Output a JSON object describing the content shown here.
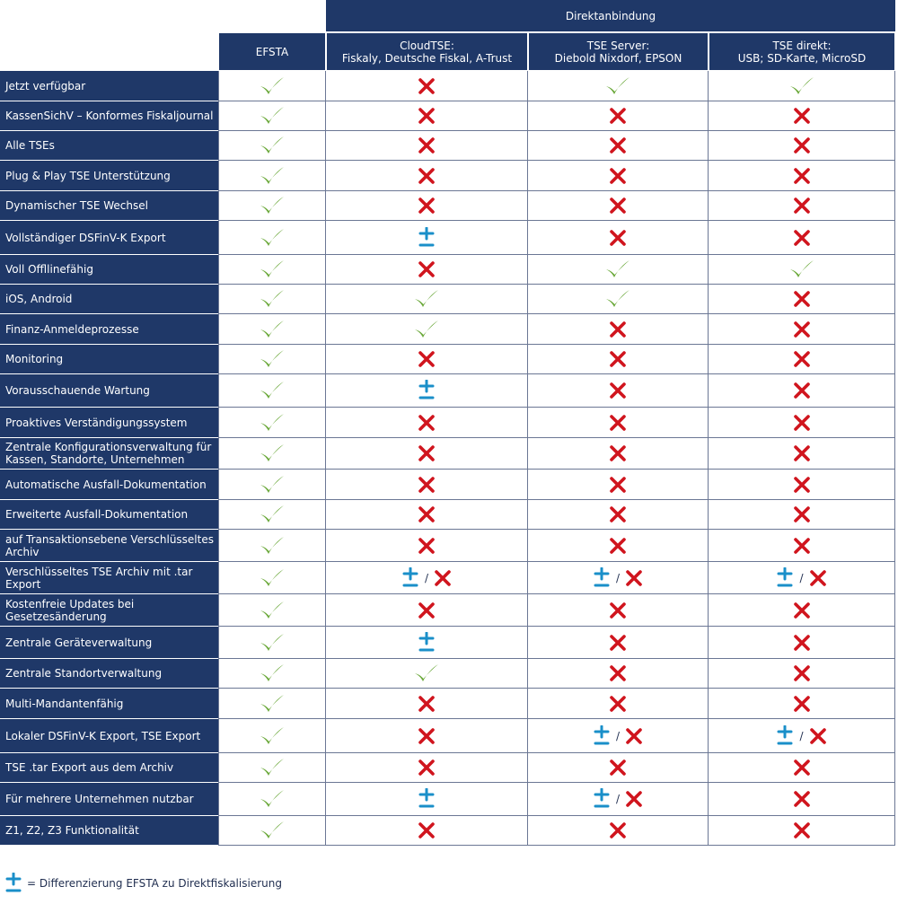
{
  "header": {
    "super_label": "Direktanbindung",
    "columns": [
      {
        "line1": "EFSTA",
        "line2": ""
      },
      {
        "line1": "CloudTSE:",
        "line2": "Fiskaly, Deutsche Fiskal, A-Trust"
      },
      {
        "line1": "TSE Server:",
        "line2": "Diebold Nixdorf, EPSON"
      },
      {
        "line1": "TSE direkt:",
        "line2": "USB; SD-Karte, MicroSD"
      }
    ]
  },
  "colors": {
    "navy": "#1f3868",
    "check": "#6aa839",
    "cross": "#d0151e",
    "plusminus": "#1a8fc9"
  },
  "rows": [
    {
      "label": "Jetzt verfügbar",
      "values": [
        "check",
        "cross",
        "check",
        "check"
      ]
    },
    {
      "label": "KassenSichV – Konformes Fiskaljournal",
      "values": [
        "check",
        "cross",
        "cross",
        "cross"
      ]
    },
    {
      "label": "Alle TSEs",
      "values": [
        "check",
        "cross",
        "cross",
        "cross"
      ]
    },
    {
      "label": "Plug & Play TSE Unterstützung",
      "values": [
        "check",
        "cross",
        "cross",
        "cross"
      ]
    },
    {
      "label": "Dynamischer TSE Wechsel",
      "values": [
        "check",
        "cross",
        "cross",
        "cross"
      ]
    },
    {
      "label": "Vollständiger DSFinV-K Export",
      "values": [
        "check",
        "plusminus",
        "cross",
        "cross"
      ]
    },
    {
      "label": "Voll Offllinefähig",
      "values": [
        "check",
        "cross",
        "check",
        "check"
      ]
    },
    {
      "label": "iOS, Android",
      "values": [
        "check",
        "check",
        "check",
        "cross"
      ]
    },
    {
      "label": "Finanz-Anmeldeprozesse",
      "values": [
        "check",
        "check",
        "cross",
        "cross"
      ]
    },
    {
      "label": "Monitoring",
      "values": [
        "check",
        "cross",
        "cross",
        "cross"
      ]
    },
    {
      "label": "Vorausschauende Wartung",
      "values": [
        "check",
        "plusminus",
        "cross",
        "cross"
      ]
    },
    {
      "label": "Proaktives Verständigungssystem",
      "values": [
        "check",
        "cross",
        "cross",
        "cross"
      ]
    },
    {
      "label": "Zentrale Konfigurationsverwaltung für Kassen, Standorte, Unternehmen",
      "values": [
        "check",
        "cross",
        "cross",
        "cross"
      ]
    },
    {
      "label": "Automatische Ausfall-Dokumentation",
      "values": [
        "check",
        "cross",
        "cross",
        "cross"
      ]
    },
    {
      "label": "Erweiterte Ausfall-Dokumentation",
      "values": [
        "check",
        "cross",
        "cross",
        "cross"
      ]
    },
    {
      "label": "auf Transaktionsebene Verschlüsseltes Archiv",
      "values": [
        "check",
        "cross",
        "cross",
        "cross"
      ]
    },
    {
      "label": "Verschlüsseltes TSE Archiv mit .tar Export",
      "values": [
        "check",
        "plusminus/cross",
        "plusminus/cross",
        "plusminus/cross"
      ]
    },
    {
      "label": "Kostenfreie Updates bei Gesetzesänderung",
      "values": [
        "check",
        "cross",
        "cross",
        "cross"
      ]
    },
    {
      "label": "Zentrale Geräteverwaltung",
      "values": [
        "check",
        "plusminus",
        "cross",
        "cross"
      ]
    },
    {
      "label": "Zentrale Standortverwaltung",
      "values": [
        "check",
        "check",
        "cross",
        "cross"
      ]
    },
    {
      "label": "Multi-Mandantenfähig",
      "values": [
        "check",
        "cross",
        "cross",
        "cross"
      ]
    },
    {
      "label": "Lokaler DSFinV-K Export, TSE Export",
      "values": [
        "check",
        "cross",
        "plusminus/cross",
        "plusminus/cross"
      ]
    },
    {
      "label": "TSE .tar Export aus dem Archiv",
      "values": [
        "check",
        "cross",
        "cross",
        "cross"
      ]
    },
    {
      "label": "Für mehrere Unternehmen nutzbar",
      "values": [
        "check",
        "plusminus",
        "plusminus/cross",
        "cross"
      ]
    },
    {
      "label": "Z1, Z2, Z3 Funktionalität",
      "values": [
        "check",
        "cross",
        "cross",
        "cross"
      ]
    }
  ],
  "legend": {
    "icon": "plus-minus-icon",
    "text": "= Differenzierung EFSTA zu Direktfiskalisierung"
  }
}
